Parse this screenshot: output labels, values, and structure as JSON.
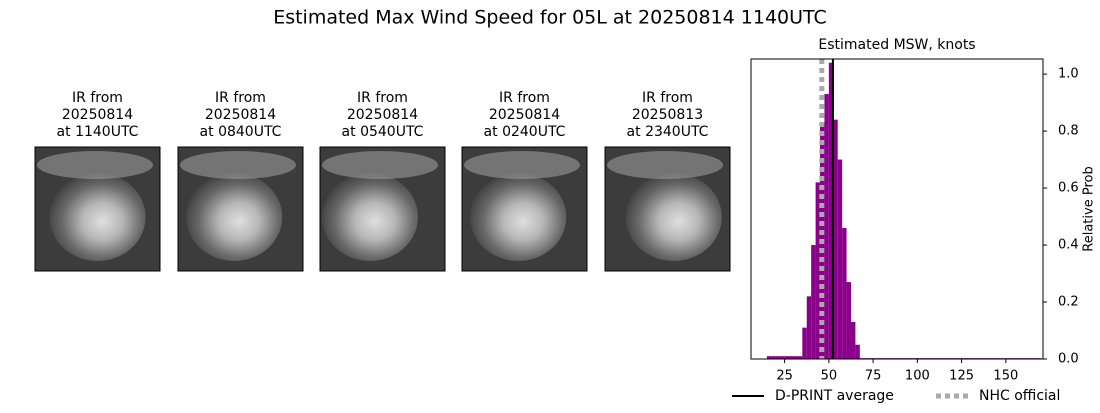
{
  "title": "Estimated Max Wind Speed for 05L at 20250814 1140UTC",
  "panels": [
    {
      "caption": [
        "IR from",
        "20250814",
        "at 1140UTC"
      ]
    },
    {
      "caption": [
        "IR from",
        "20250814",
        "at 0840UTC"
      ]
    },
    {
      "caption": [
        "IR from",
        "20250814",
        "at 0540UTC"
      ]
    },
    {
      "caption": [
        "IR from",
        "20250814",
        "at 0240UTC"
      ]
    },
    {
      "caption": [
        "IR from",
        "20250813",
        "at 2340UTC"
      ]
    }
  ],
  "chart_data": {
    "type": "histogram",
    "title": "Estimated MSW, knots",
    "y_label": "Relative Prob",
    "color": "#8b008b",
    "bins": [
      15,
      17.5,
      20,
      22.5,
      25,
      27.5,
      30,
      32.5,
      35,
      37.5,
      40,
      42.5,
      45,
      47.5,
      50,
      52.5,
      55,
      57.5,
      60,
      62.5,
      65,
      67.5,
      70,
      72.5,
      75,
      77.5,
      80,
      82.5,
      85,
      87.5,
      90,
      92.5,
      95,
      97.5,
      100,
      102.5,
      105,
      107.5,
      110,
      112.5,
      115,
      117.5,
      120,
      122.5,
      125,
      127.5,
      130,
      132.5,
      135,
      137.5,
      140,
      142.5,
      145,
      147.5,
      150,
      152.5,
      155,
      157.5,
      160,
      162.5,
      165,
      167.5,
      170
    ],
    "values": [
      0.01,
      0.01,
      0.01,
      0.01,
      0.01,
      0.01,
      0.01,
      0.01,
      0.11,
      0.22,
      0.4,
      0.62,
      0.83,
      0.93,
      1.04,
      0.84,
      0.7,
      0.46,
      0.27,
      0.13,
      0.05,
      0.003,
      0.003,
      0.003,
      0.003,
      0.003,
      0.003,
      0.003,
      0.003,
      0.003,
      0.003,
      0.003,
      0.003,
      0.003,
      0.003,
      0.003,
      0.003,
      0.003,
      0.003,
      0.003,
      0.003,
      0.003,
      0.003,
      0.003,
      0.003,
      0.003,
      0.003,
      0.003,
      0.003,
      0.003,
      0.003,
      0.003,
      0.003,
      0.003,
      0.003,
      0.003,
      0.003,
      0.003,
      0.003,
      0.003,
      0.003,
      0.003
    ],
    "reference_lines": [
      {
        "name": "D-PRINT average",
        "value": 52.3,
        "color": "#000000",
        "dashed": false
      },
      {
        "name": "NHC official",
        "value": 46,
        "color": "#aaaaaa",
        "dashed": true
      }
    ],
    "xlim": [
      6,
      171
    ],
    "xticks": [
      25,
      50,
      75,
      100,
      125,
      150
    ],
    "ylim": [
      0,
      1.053
    ],
    "yticks": [
      {
        "value": 0,
        "label": "0.0"
      },
      0.2,
      0.4,
      0.6,
      0.8,
      {
        "value": 1,
        "label": "1.0"
      }
    ]
  }
}
